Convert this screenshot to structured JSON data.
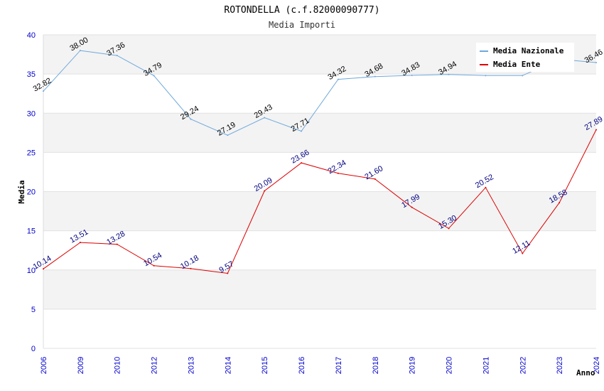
{
  "chart_data": {
    "type": "line",
    "title": "ROTONDELLA (c.f.82000090777)",
    "subtitle": "Media Importi",
    "xlabel": "Anno",
    "ylabel": "Media",
    "ylim": [
      0,
      40
    ],
    "yticks": [
      "0",
      "5",
      "10",
      "15",
      "20",
      "25",
      "30",
      "35",
      "40"
    ],
    "categories": [
      "2006",
      "2009",
      "2010",
      "2012",
      "2013",
      "2014",
      "2015",
      "2016",
      "2017",
      "2018",
      "2019",
      "2020",
      "2021",
      "2022",
      "2023",
      "2024"
    ],
    "grid": "horizontal bands",
    "legend_position": "top-right",
    "series": [
      {
        "name": "Media Nazionale",
        "color": "#6fa8dc",
        "values": [
          32.82,
          38.0,
          37.36,
          34.79,
          29.24,
          27.19,
          29.43,
          27.71,
          34.32,
          34.68,
          34.83,
          34.94,
          34.8,
          34.8,
          36.9,
          36.46
        ],
        "labels": [
          "32.82",
          "38.00",
          "37.36",
          "34.79",
          "29.24",
          "27.19",
          "29.43",
          "27.71",
          "34.32",
          "34.68",
          "34.83",
          "34.94",
          "",
          "",
          "",
          "36.46"
        ]
      },
      {
        "name": "Media Ente",
        "color": "#dd0000",
        "values": [
          10.14,
          13.51,
          13.28,
          10.54,
          10.18,
          9.57,
          20.09,
          23.66,
          22.34,
          21.6,
          17.99,
          15.3,
          20.52,
          12.11,
          18.58,
          27.89
        ],
        "labels": [
          "10.14",
          "13.51",
          "13.28",
          "10.54",
          "10.18",
          "9.57",
          "20.09",
          "23.66",
          "22.34",
          "21.60",
          "17.99",
          "15.30",
          "20.52",
          "12.11",
          "18.58",
          "27.89"
        ]
      }
    ]
  }
}
